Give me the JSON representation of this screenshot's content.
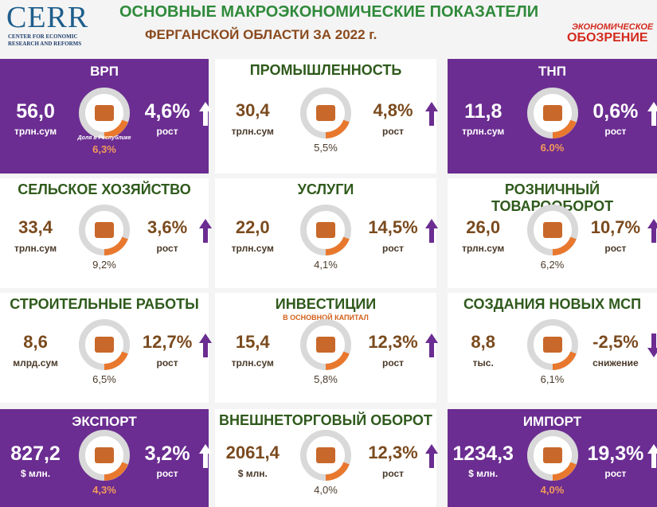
{
  "header": {
    "logo": "CERR",
    "logo_sub_1": "CENTER FOR ECONOMIC",
    "logo_sub_2": "RESEARCH AND REFORMS",
    "title": "ОСНОВНЫЕ МАКРОЭКОНОМИЧЕСКИЕ ПОКАЗАТЕЛИ",
    "subtitle": "ФЕРГАНСКОЙ ОБЛАСТИ ЗА 2022 г.",
    "brand_1": "ЭКОНОМИЧЕСКОЕ",
    "brand_2": "ОБОЗРЕНИЕ"
  },
  "cards": [
    {
      "title": "ВРП",
      "value": "56,0",
      "unit": "трлн.сум",
      "note": "Доля в Республике",
      "share": "6,3%",
      "change": "4,6%",
      "change_label": "рост"
    },
    {
      "title": "ПРОМЫШЛЕННОСТЬ",
      "value": "30,4",
      "unit": "трлн.сум",
      "share": "5,5%",
      "change": "4,8%",
      "change_label": "рост"
    },
    {
      "title": "ТНП",
      "value": "11,8",
      "unit": "трлн.сум",
      "share": "6.0%",
      "change": "0,6%",
      "change_label": "рост"
    },
    {
      "title": "СЕЛЬСКОЕ ХОЗЯЙСТВО",
      "value": "33,4",
      "unit": "трлн.сум",
      "share": "9,2%",
      "change": "3,6%",
      "change_label": "рост"
    },
    {
      "title": "УСЛУГИ",
      "value": "22,0",
      "unit": "трлн.сум",
      "share": "4,1%",
      "change": "14,5%",
      "change_label": "рост"
    },
    {
      "title": "РОЗНИЧНЫЙ ТОВАРООБОРОТ",
      "value": "26,0",
      "unit": "трлн.сум",
      "share": "6,2%",
      "change": "10,7%",
      "change_label": "рост"
    },
    {
      "title": "СТРОИТЕЛЬНЫЕ РАБОТЫ",
      "value": "8,6",
      "unit": "млрд.сум",
      "share": "6,5%",
      "change": "12,7%",
      "change_label": "рост"
    },
    {
      "title": "ИНВЕСТИЦИИ",
      "subtitle": "В ОСНОВНОЙ КАПИТАЛ",
      "value": "15,4",
      "unit": "трлн.сум",
      "share": "5,8%",
      "change": "12,3%",
      "change_label": "рост"
    },
    {
      "title": "СОЗДАНИЯ НОВЫХ МСП",
      "value": "8,8",
      "unit": "тыс.",
      "share": "6,1%",
      "change": "-2,5%",
      "change_label": "снижение"
    },
    {
      "title": "ЭКСПОРТ",
      "value": "827,2",
      "unit": "$ млн.",
      "share": "4,3%",
      "change": "3,2%",
      "change_label": "рост"
    },
    {
      "title": "ВНЕШНЕТОРГОВЫЙ ОБОРОТ",
      "value": "2061,4",
      "unit": "$ млн.",
      "share": "4,0%",
      "change": "12,3%",
      "change_label": "рост"
    },
    {
      "title": "ИМПОРТ",
      "value": "1234,3",
      "unit": "$ млн.",
      "share": "4,0%",
      "change": "19,3%",
      "change_label": "рост"
    }
  ]
}
